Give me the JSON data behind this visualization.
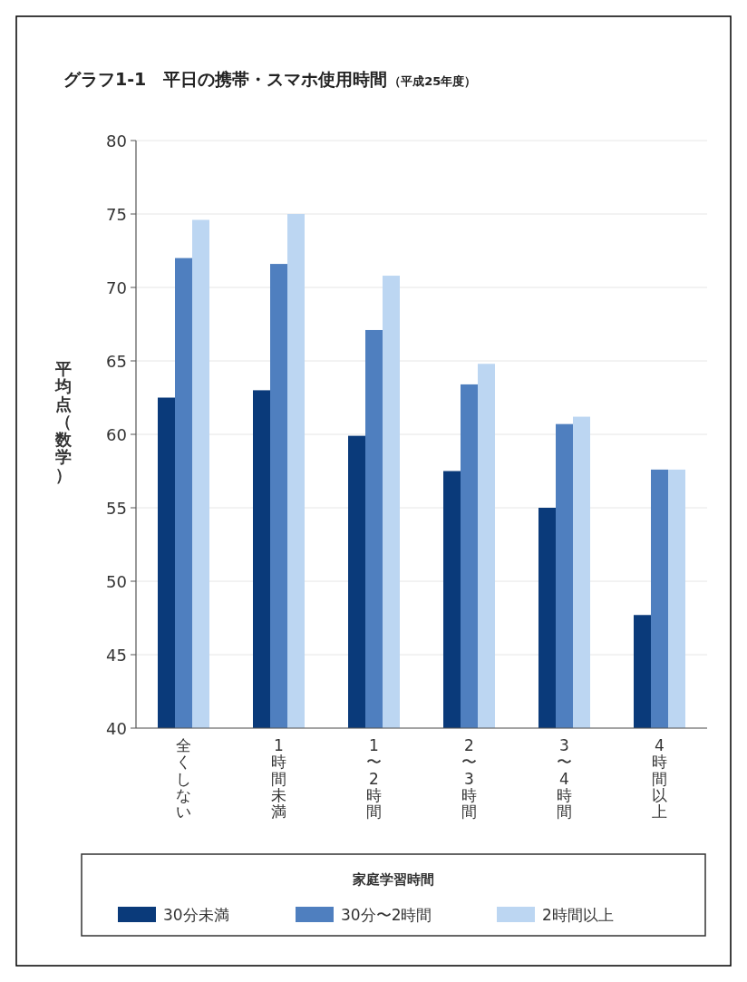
{
  "chart_data": {
    "type": "bar",
    "title": "グラフ1-1　平日の携帯・スマホ使用時間",
    "subtitle": "（平成25年度）",
    "ylabel": "平均点（数学）",
    "legend_title": "家庭学習時間",
    "categories": [
      "全くしない",
      "1時間未満",
      "1〜2時間",
      "2〜3時間",
      "3〜4時間",
      "4時間以上"
    ],
    "series": [
      {
        "name": "30分未満",
        "color": "#0a3a7a",
        "values": [
          62.5,
          63,
          59.9,
          57.5,
          55,
          47.7
        ]
      },
      {
        "name": "30分〜2時間",
        "color": "#4f7fbf",
        "values": [
          72,
          71.6,
          67.1,
          63.4,
          60.7,
          57.6
        ]
      },
      {
        "name": "2時間以上",
        "color": "#bcd6f2",
        "values": [
          74.6,
          75,
          70.8,
          64.8,
          61.2,
          57.6
        ]
      }
    ],
    "ylim": [
      40,
      80
    ],
    "yticks": [
      40,
      45,
      50,
      55,
      60,
      65,
      70,
      75,
      80
    ],
    "grid": "y",
    "legend": "bottom"
  }
}
